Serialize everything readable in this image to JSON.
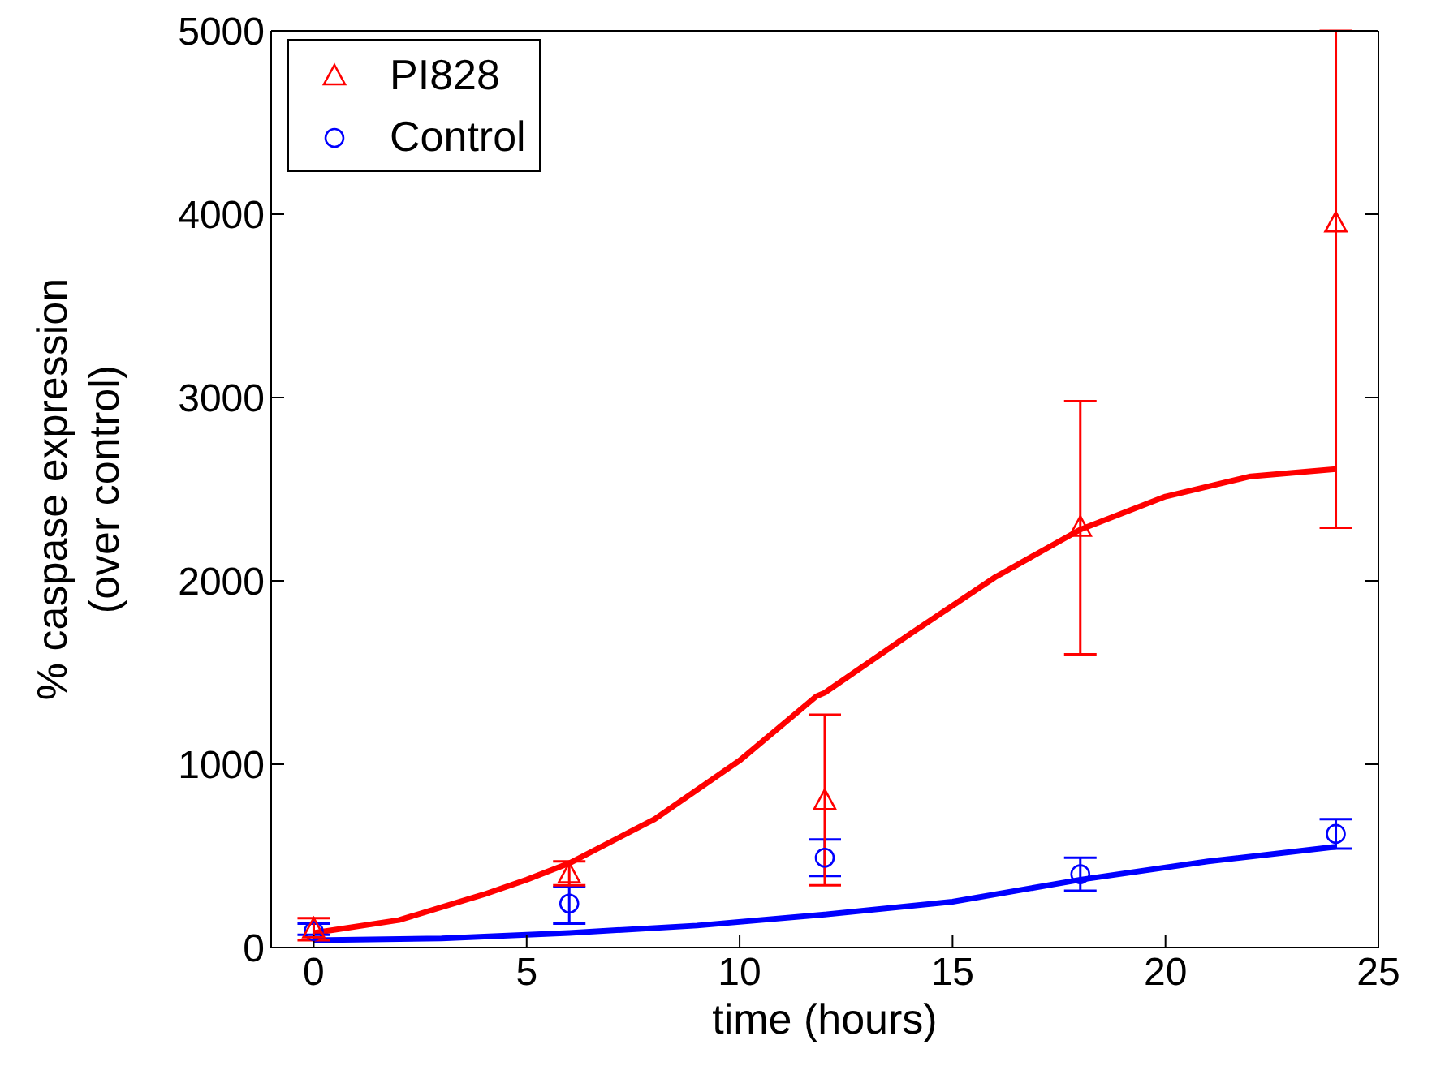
{
  "chart_data": {
    "type": "scatter",
    "xlabel": "time (hours)",
    "ylabel": "% caspase expression\n(over control)",
    "xlim": [
      -1,
      25
    ],
    "xticks": [
      0,
      5,
      10,
      15,
      20,
      25
    ],
    "ylim": [
      0,
      5000
    ],
    "yticks": [
      0,
      1000,
      2000,
      3000,
      4000,
      5000
    ],
    "grid": false,
    "legend": "top left",
    "series": [
      {
        "name": "PI828",
        "color": "#ff0000",
        "marker": "triangle",
        "x": [
          0,
          6,
          12,
          18,
          24
        ],
        "values": [
          100,
          400,
          800,
          2290,
          3950
        ],
        "errors": [
          [
            40,
            160
          ],
          [
            340,
            470
          ],
          [
            340,
            1270
          ],
          [
            1600,
            2980
          ],
          [
            2290,
            5000
          ]
        ]
      },
      {
        "name": "Control",
        "color": "#0000ff",
        "marker": "circle",
        "x": [
          0,
          6,
          12,
          18,
          24
        ],
        "values": [
          90,
          240,
          490,
          400,
          620
        ],
        "errors": [
          [
            70,
            130
          ],
          [
            130,
            330
          ],
          [
            390,
            590
          ],
          [
            310,
            490
          ],
          [
            540,
            700
          ]
        ]
      },
      {
        "type": "line",
        "color": "#ff0000",
        "marker": "none",
        "x": [
          0,
          2,
          4,
          5,
          6,
          8,
          10,
          11.8,
          12,
          14,
          16,
          18,
          20,
          22,
          24
        ],
        "values": [
          80,
          150,
          290,
          370,
          460,
          700,
          1020,
          1370,
          1390,
          1710,
          2020,
          2280,
          2460,
          2570,
          2610
        ]
      },
      {
        "type": "line",
        "color": "#0000ff",
        "marker": "none",
        "x": [
          0,
          3,
          6,
          9,
          12,
          15,
          18,
          21,
          24
        ],
        "values": [
          40,
          50,
          80,
          120,
          180,
          250,
          370,
          470,
          550
        ]
      }
    ]
  }
}
